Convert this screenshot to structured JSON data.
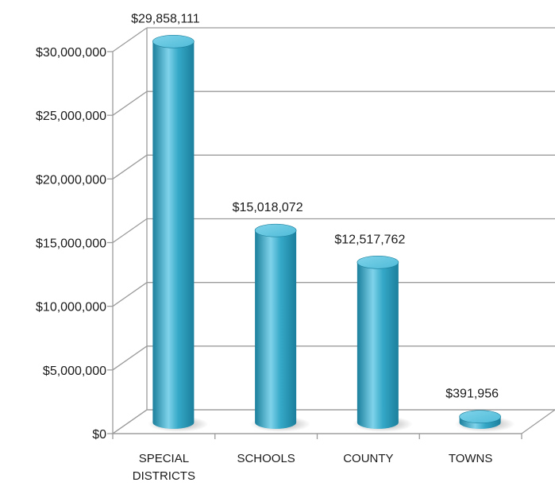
{
  "chart_data": {
    "type": "bar",
    "categories": [
      "SPECIAL DISTRICTS",
      "SCHOOLS",
      "COUNTY",
      "TOWNS"
    ],
    "category_lines": [
      [
        "SPECIAL",
        "DISTRICTS"
      ],
      [
        "SCHOOLS"
      ],
      [
        "COUNTY"
      ],
      [
        "TOWNS"
      ]
    ],
    "values": [
      29858111,
      15018072,
      12517762,
      391956
    ],
    "data_labels": [
      "$29,858,111",
      "$15,018,072",
      "$12,517,762",
      "$391,956"
    ],
    "y_ticks": [
      0,
      5000000,
      10000000,
      15000000,
      20000000,
      25000000,
      30000000
    ],
    "y_tick_labels": [
      "$0",
      "$5,000,000",
      "$10,000,000",
      "$15,000,000",
      "$20,000,000",
      "$25,000,000",
      "$30,000,000"
    ],
    "ylim": [
      0,
      30000000
    ],
    "grid": true,
    "style": "3d-cylinder",
    "colors": {
      "bar_dark": "#1b7f9c",
      "bar_mid": "#35a8c8",
      "bar_light": "#7fd3ea",
      "bar_top": "#4fbbd8",
      "grid": "#9b9b9b"
    }
  }
}
